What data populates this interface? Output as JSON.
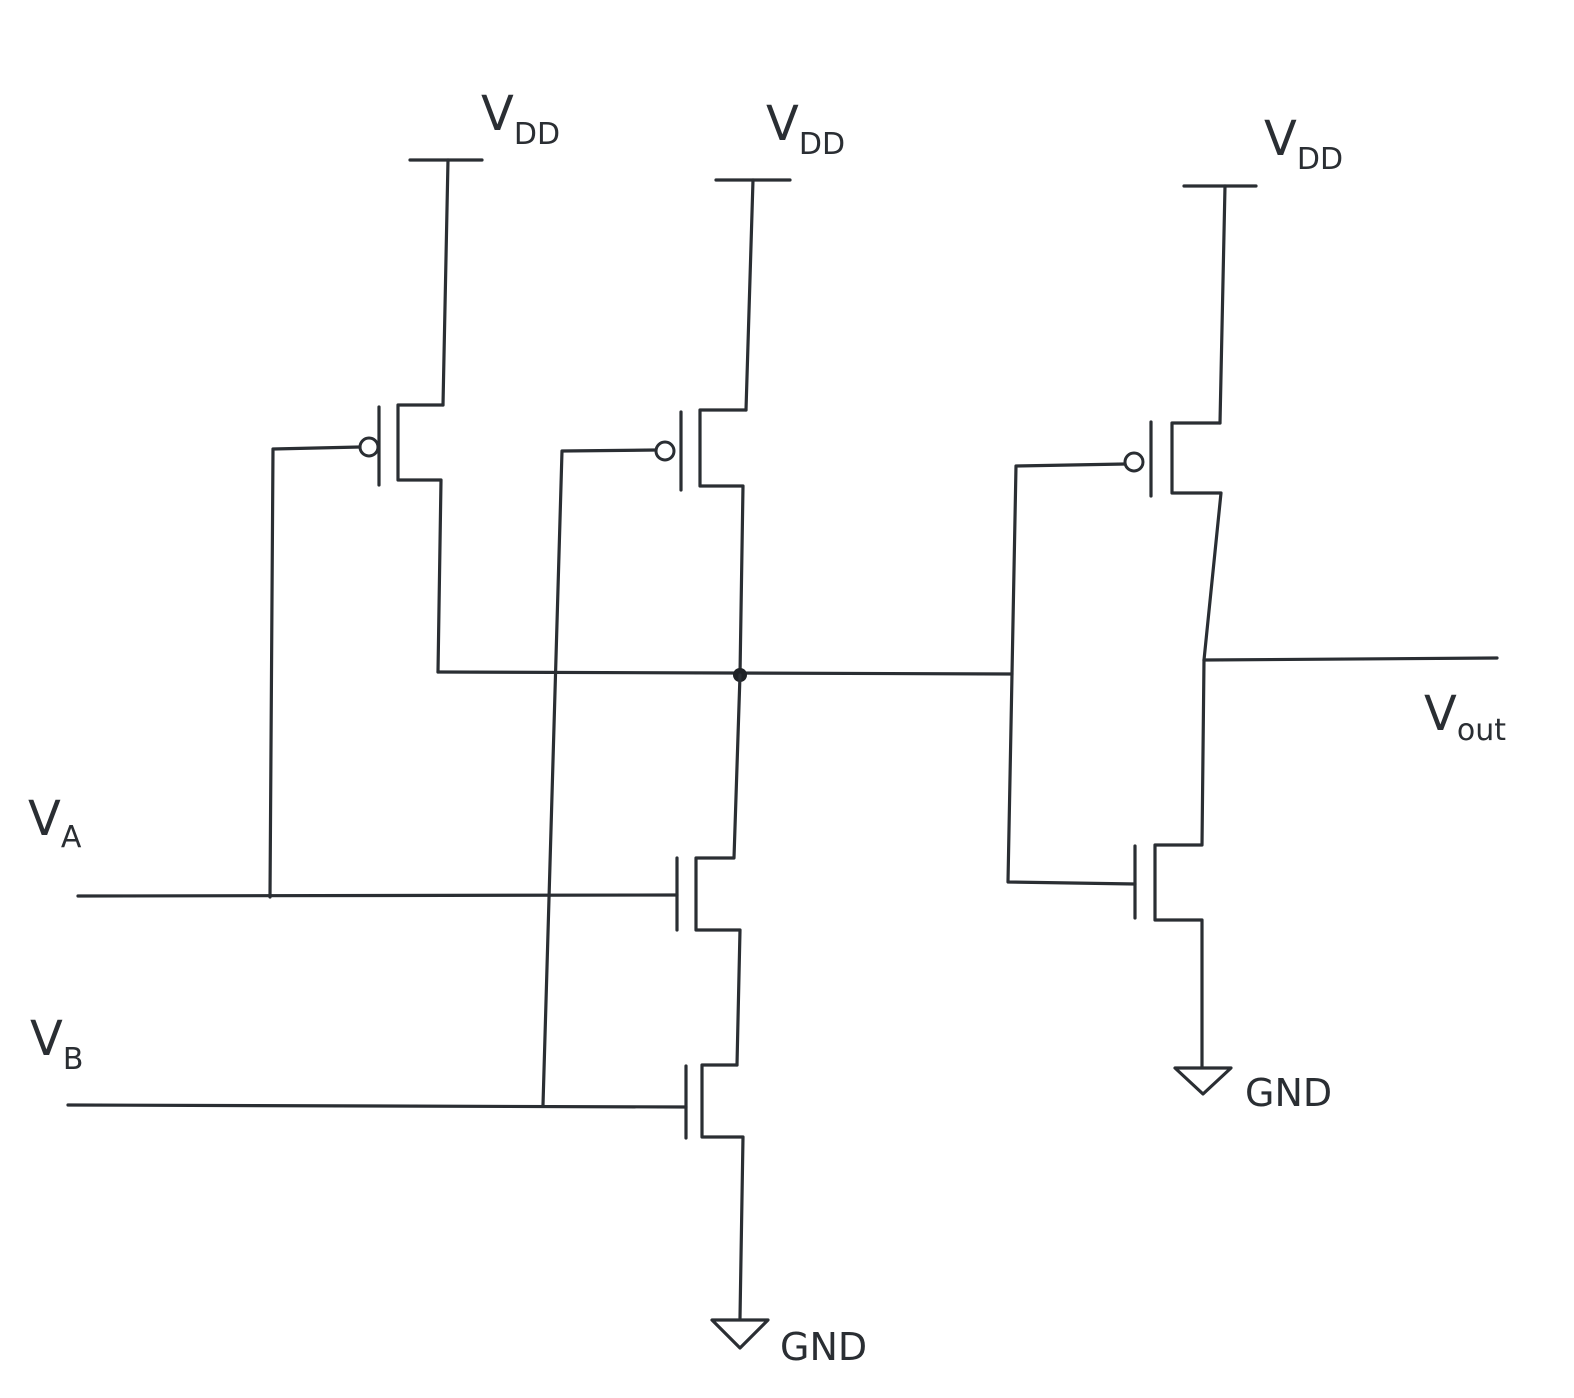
{
  "supplies": {
    "vdd_1": {
      "main": "V",
      "sub": "DD"
    },
    "vdd_2": {
      "main": "V",
      "sub": "DD"
    },
    "vdd_3": {
      "main": "V",
      "sub": "DD"
    }
  },
  "grounds": {
    "gnd_1": "GND",
    "gnd_2": "GND"
  },
  "inputs": {
    "a": {
      "main": "V",
      "sub": "A"
    },
    "b": {
      "main": "V",
      "sub": "B"
    }
  },
  "output": {
    "main": "V",
    "sub": "out"
  },
  "colors": {
    "ink": "#2a2e33",
    "paper": "#ffffff"
  }
}
